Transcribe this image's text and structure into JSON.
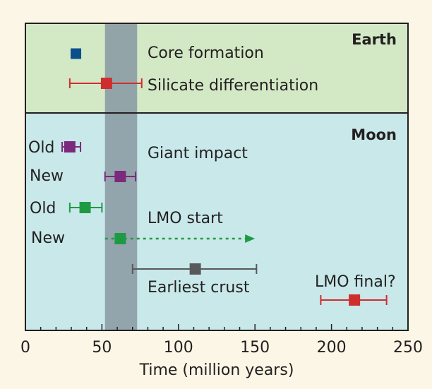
{
  "chart_data": {
    "type": "scatter",
    "xlabel": "Time (million years)",
    "xlim": [
      0,
      250
    ],
    "xticks": [
      0,
      50,
      100,
      150,
      200,
      250
    ],
    "shaded_band": [
      52,
      73
    ],
    "panels": [
      {
        "name": "Earth",
        "color": "#d3e9c6"
      },
      {
        "name": "Moon",
        "color": "#c8e8ea"
      }
    ],
    "points": [
      {
        "panel": "Earth",
        "row": 1,
        "x": 33,
        "err": [
          33,
          33
        ],
        "color": "#0b4f8a",
        "label": "Core formation",
        "tag": ""
      },
      {
        "panel": "Earth",
        "row": 2,
        "x": 53,
        "err": [
          29,
          76
        ],
        "color": "#cf2e2e",
        "label": "Silicate differentiation",
        "tag": ""
      },
      {
        "panel": "Moon",
        "row": 3,
        "x": 29,
        "err": [
          24,
          36
        ],
        "color": "#7b2a7d",
        "label": "",
        "tag": "Old"
      },
      {
        "panel": "Moon",
        "row": 4,
        "x": 62,
        "err": [
          52,
          72
        ],
        "color": "#7b2a7d",
        "label": "",
        "tag": "New"
      },
      {
        "panel": "Moon",
        "row": 5,
        "x": 39,
        "err": [
          29,
          50
        ],
        "color": "#1f9a44",
        "label": "",
        "tag": "Old"
      },
      {
        "panel": "Moon",
        "row": 6,
        "x": 62,
        "err": [
          52,
          150
        ],
        "color": "#1f9a44",
        "label": "",
        "tag": "New",
        "arrow": true
      },
      {
        "panel": "Moon",
        "row": 7,
        "x": 111,
        "err": [
          70,
          151
        ],
        "color": "#58595b",
        "label": "",
        "tag": ""
      },
      {
        "panel": "Moon",
        "row": 8,
        "x": 215,
        "err": [
          193,
          236
        ],
        "color": "#cf2e2e",
        "label": "",
        "tag": ""
      }
    ],
    "annotations": [
      "Giant impact",
      "LMO start",
      "Earliest crust",
      "LMO final?"
    ]
  }
}
